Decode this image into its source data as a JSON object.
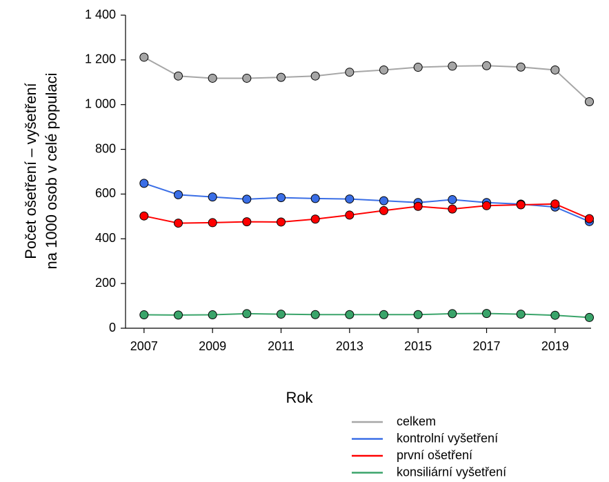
{
  "chart_data": {
    "type": "line",
    "ylabel": [
      "Počet ošetření – vyšetření",
      "na 1000 osob v celé populaci"
    ],
    "xlabel": "Rok",
    "x": [
      2007,
      2008,
      2009,
      2010,
      2011,
      2012,
      2013,
      2014,
      2015,
      2016,
      2017,
      2018,
      2019,
      2020
    ],
    "series": [
      {
        "name": "celkem",
        "color": "#a6a6a6",
        "values": [
          1212,
          1128,
          1118,
          1118,
          1122,
          1128,
          1145,
          1155,
          1167,
          1172,
          1174,
          1168,
          1155,
          1013
        ]
      },
      {
        "name": "kontrolní vyšetření",
        "color": "#3a6ee6",
        "values": [
          648,
          597,
          587,
          577,
          584,
          580,
          578,
          570,
          562,
          575,
          562,
          555,
          542,
          477
        ]
      },
      {
        "name": "první ošetření",
        "color": "#ff0000",
        "values": [
          502,
          470,
          472,
          476,
          475,
          488,
          506,
          526,
          545,
          533,
          548,
          552,
          556,
          490
        ]
      },
      {
        "name": "konsiliární vyšetření",
        "color": "#3aa46a",
        "values": [
          60,
          59,
          60,
          65,
          63,
          61,
          61,
          61,
          61,
          65,
          66,
          63,
          58,
          48
        ]
      }
    ],
    "xlim": [
      2006.5,
      2020.05
    ],
    "xticks": [
      2007,
      2009,
      2011,
      2013,
      2015,
      2017,
      2019
    ],
    "ylim": [
      0,
      1400
    ],
    "yticks": [
      0,
      200,
      400,
      600,
      800,
      {
        "value": 1000,
        "label": "1 000"
      },
      {
        "value": 1200,
        "label": "1 200"
      },
      {
        "value": 1400,
        "label": "1 400"
      }
    ],
    "legend": "bottom-right"
  }
}
